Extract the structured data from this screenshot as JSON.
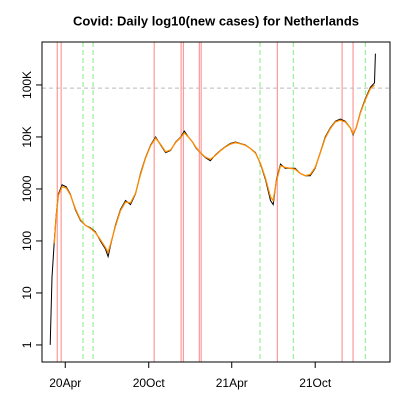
{
  "chart_data": {
    "type": "line",
    "title": "Covid: Daily log10(new cases) for Netherlands",
    "log_y": true,
    "x": [
      58,
      62,
      67,
      71,
      76,
      84,
      93,
      102,
      113,
      124,
      135,
      146,
      157,
      168,
      179,
      185,
      190,
      201,
      212,
      223,
      234,
      245,
      256,
      267,
      278,
      289,
      300,
      311,
      322,
      333,
      344,
      352,
      361,
      370,
      378,
      387,
      398,
      409,
      420,
      431,
      442,
      453,
      464,
      475,
      486,
      497,
      508,
      519,
      530,
      541,
      547,
      554,
      563,
      573,
      584,
      595,
      606,
      617,
      628,
      639,
      650,
      661,
      672,
      683,
      694,
      705,
      716,
      722,
      729,
      738,
      749,
      760,
      769,
      771
    ],
    "series": [
      {
        "color": "#000000",
        "values": [
          1,
          20,
          100,
          300,
          800,
          1200,
          1100,
          800,
          400,
          250,
          200,
          180,
          150,
          100,
          70,
          50,
          80,
          200,
          400,
          600,
          500,
          800,
          2000,
          4000,
          7000,
          10000,
          7000,
          5000,
          5500,
          8000,
          10000,
          13000,
          10000,
          8000,
          6000,
          5000,
          4000,
          3500,
          4500,
          5500,
          6500,
          7500,
          8000,
          7500,
          7000,
          6000,
          5000,
          3000,
          1500,
          600,
          500,
          1500,
          3000,
          2500,
          2500,
          2500,
          2000,
          1800,
          1800,
          2500,
          5000,
          10000,
          15000,
          20000,
          22000,
          20000,
          15000,
          11000,
          15000,
          30000,
          55000,
          90000,
          110000,
          400000
        ]
      },
      {
        "color": "#ff8c00",
        "values": [
          null,
          null,
          90,
          280,
          750,
          1100,
          1050,
          780,
          420,
          260,
          200,
          175,
          145,
          105,
          75,
          60,
          85,
          190,
          380,
          560,
          540,
          820,
          1900,
          3900,
          6800,
          9500,
          7200,
          5200,
          5600,
          7800,
          9800,
          12000,
          10000,
          8000,
          6200,
          5000,
          4100,
          3700,
          4400,
          5400,
          6400,
          7300,
          7800,
          7400,
          6900,
          6000,
          4900,
          3100,
          1600,
          700,
          600,
          1400,
          2800,
          2600,
          2500,
          2400,
          2000,
          1800,
          1900,
          2600,
          4900,
          9500,
          14500,
          19500,
          21000,
          19500,
          15000,
          11500,
          15000,
          29000,
          52000,
          85000,
          100000,
          null
        ]
      }
    ],
    "xlim": [
      40,
      803
    ],
    "xticks": [
      {
        "value": 91,
        "label": "20Apr"
      },
      {
        "value": 274,
        "label": "20Oct"
      },
      {
        "value": 456,
        "label": "21Apr"
      },
      {
        "value": 639,
        "label": "21Oct"
      }
    ],
    "ylim": [
      0.47,
      670000
    ],
    "yticks": [
      1,
      10,
      100,
      1000,
      {
        "value": 10000,
        "label": "10K"
      },
      {
        "value": 100000,
        "label": "100K"
      }
    ],
    "hlines": [
      {
        "value": 87000,
        "color": "#bbbbbb"
      }
    ],
    "vlines": [
      {
        "value": 73.5,
        "color": "#ff9999"
      },
      {
        "value": 82,
        "color": "#ff9999"
      },
      {
        "value": 286,
        "color": "#ff9999"
      },
      {
        "value": 345,
        "color": "#ff9999"
      },
      {
        "value": 350,
        "color": "#ff9999"
      },
      {
        "value": 385,
        "color": "#ff9999"
      },
      {
        "value": 389,
        "color": "#ff9999"
      },
      {
        "value": 556,
        "color": "#ff9999"
      },
      {
        "value": 698,
        "color": "#ff9999"
      },
      {
        "value": 722,
        "color": "#ff9999"
      },
      {
        "value": 130,
        "color": "#99ee99",
        "dashed": true
      },
      {
        "value": 152,
        "color": "#99ee99",
        "dashed": true
      },
      {
        "value": 518,
        "color": "#99ee99",
        "dashed": true
      },
      {
        "value": 591,
        "color": "#99ee99",
        "dashed": true
      },
      {
        "value": 749,
        "color": "#99ee99",
        "dashed": true
      }
    ]
  }
}
